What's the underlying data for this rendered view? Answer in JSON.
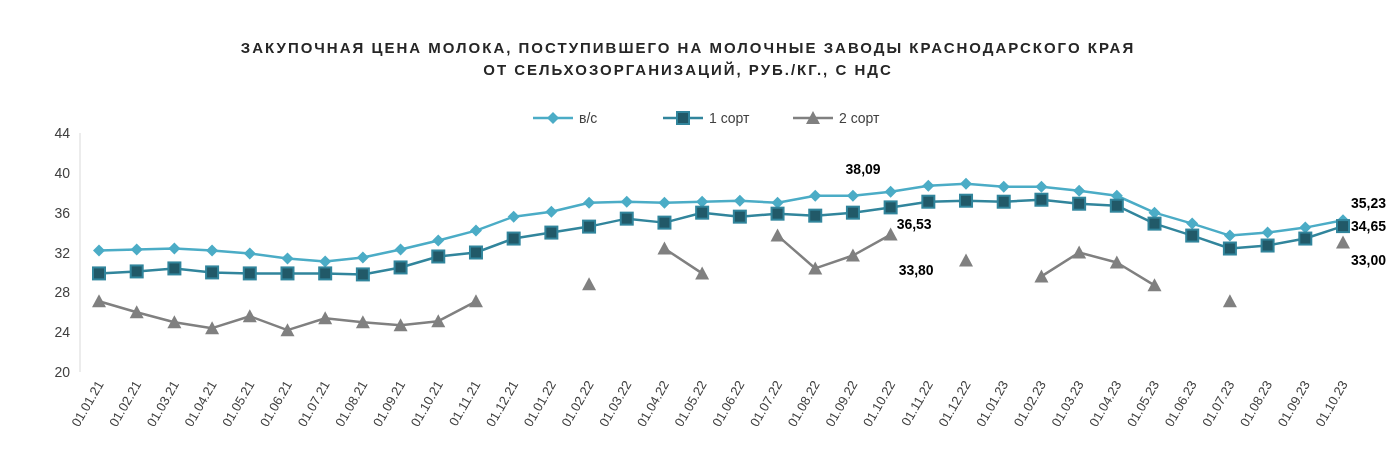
{
  "chart_data": {
    "type": "line",
    "title": "ЗАКУПОЧНАЯ ЦЕНА МОЛОКА, ПОСТУПИВШЕГО НА МОЛОЧНЫЕ ЗАВОДЫ КРАСНОДАРСКОГО КРАЯ\nОТ СЕЛЬХОЗОРГАНИЗАЦИЙ, РУБ./КГ., С НДС",
    "categories": [
      "01.01.21",
      "01.02.21",
      "01.03.21",
      "01.04.21",
      "01.05.21",
      "01.06.21",
      "01.07.21",
      "01.08.21",
      "01.09.21",
      "01.10.21",
      "01.11.21",
      "01.12.21",
      "01.01.22",
      "01.02.22",
      "01.03.22",
      "01.04.22",
      "01.05.22",
      "01.06.22",
      "01.07.22",
      "01.08.22",
      "01.09.22",
      "01.10.22",
      "01.11.22",
      "01.12.22",
      "01.01.23",
      "01.02.23",
      "01.03.23",
      "01.04.23",
      "01.05.23",
      "01.06.23",
      "01.07.23",
      "01.08.23",
      "01.09.23",
      "01.10.23"
    ],
    "series": [
      {
        "name": "в/с",
        "color": "#4bacc6",
        "marker": "diamond",
        "values": [
          32.2,
          32.3,
          32.4,
          32.2,
          31.9,
          31.4,
          31.1,
          31.5,
          32.3,
          33.2,
          34.2,
          35.6,
          36.1,
          37.0,
          37.1,
          37.0,
          37.1,
          37.2,
          37.0,
          37.7,
          37.7,
          38.09,
          38.7,
          38.9,
          38.6,
          38.6,
          38.2,
          37.7,
          36.0,
          34.9,
          33.7,
          34.0,
          34.5,
          35.23
        ],
        "value_labels": [
          null,
          null,
          null,
          null,
          null,
          null,
          null,
          null,
          null,
          null,
          null,
          null,
          null,
          null,
          null,
          null,
          null,
          null,
          null,
          null,
          null,
          "38,09",
          null,
          null,
          null,
          null,
          null,
          null,
          null,
          null,
          null,
          null,
          null,
          "35,23"
        ]
      },
      {
        "name": "1 сорт",
        "color": "#215968",
        "marker": "square",
        "values": [
          29.9,
          30.1,
          30.4,
          30.0,
          29.9,
          29.9,
          29.9,
          29.8,
          30.5,
          31.6,
          32.0,
          33.4,
          34.0,
          34.6,
          35.4,
          35.0,
          36.0,
          35.6,
          35.9,
          35.7,
          36.0,
          36.53,
          37.1,
          37.2,
          37.1,
          37.3,
          36.9,
          36.7,
          34.9,
          33.7,
          32.4,
          32.7,
          33.4,
          34.65
        ],
        "value_labels": [
          null,
          null,
          null,
          null,
          null,
          null,
          null,
          null,
          null,
          null,
          null,
          null,
          null,
          null,
          null,
          null,
          null,
          null,
          null,
          null,
          null,
          "36,53",
          null,
          null,
          null,
          null,
          null,
          null,
          null,
          null,
          null,
          null,
          null,
          "34,65"
        ]
      },
      {
        "name": "2 сорт",
        "color": "#808080",
        "marker": "triangle",
        "values": [
          27.1,
          26.0,
          25.0,
          24.4,
          25.6,
          24.2,
          25.4,
          25.0,
          24.7,
          25.1,
          27.1,
          null,
          null,
          28.8,
          null,
          32.4,
          29.9,
          null,
          33.7,
          30.4,
          31.7,
          33.8,
          null,
          31.2,
          null,
          29.6,
          32.0,
          31.0,
          28.7,
          null,
          27.1,
          null,
          null,
          33.0
        ],
        "value_labels": [
          null,
          null,
          null,
          null,
          null,
          null,
          null,
          null,
          null,
          null,
          null,
          null,
          null,
          null,
          null,
          null,
          null,
          null,
          null,
          null,
          null,
          "33,80",
          null,
          null,
          null,
          null,
          null,
          null,
          null,
          null,
          null,
          null,
          null,
          "33,00"
        ]
      }
    ],
    "ylim": [
      20,
      44
    ],
    "yticks": [
      20,
      24,
      28,
      32,
      36,
      40,
      44
    ],
    "legend": "top",
    "grid": false
  }
}
